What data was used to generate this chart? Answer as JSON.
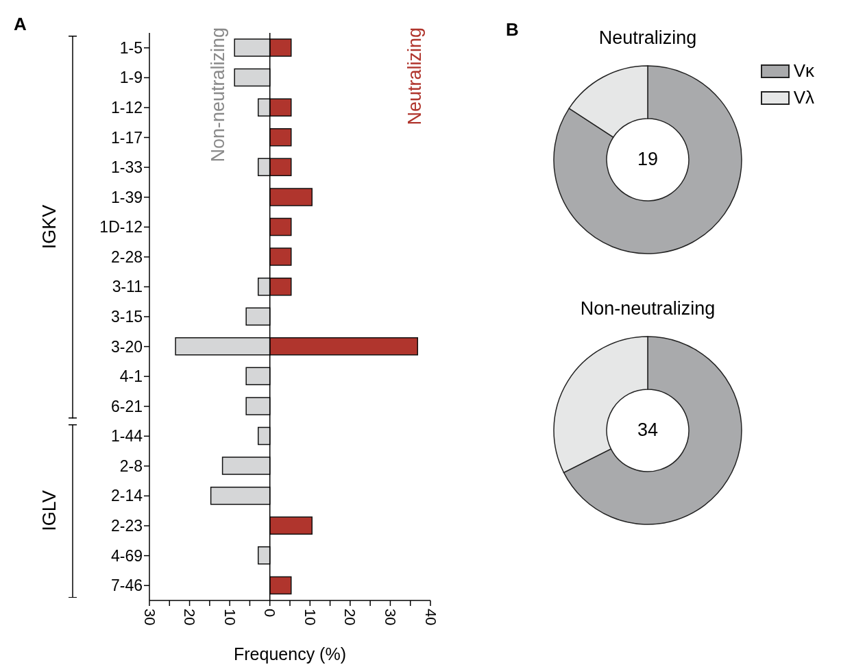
{
  "chart_data": [
    {
      "type": "bar",
      "orientation": "horizontal",
      "stacked": true,
      "xlabel": "Frequency (%)",
      "categories": [
        "1-5",
        "1-9",
        "1-12",
        "1-17",
        "1-33",
        "1-39",
        "1D-12",
        "2-28",
        "3-11",
        "3-15",
        "3-20",
        "4-1",
        "6-21",
        "1-44",
        "2-8",
        "2-14",
        "2-23",
        "4-69",
        "7-46"
      ],
      "series": [
        {
          "name": "Non-neutralizing",
          "color": "#d5d6d7",
          "values": [
            -8.8,
            -8.8,
            -2.9,
            null,
            -2.9,
            null,
            null,
            null,
            -2.9,
            -5.9,
            -23.5,
            -5.9,
            -5.9,
            -2.9,
            -11.8,
            -14.7,
            null,
            -2.9,
            null
          ]
        },
        {
          "name": "Neutralizing",
          "color": "#b0352d",
          "values": [
            5.3,
            null,
            5.3,
            5.3,
            5.3,
            10.5,
            5.3,
            5.3,
            5.3,
            null,
            36.8,
            null,
            null,
            null,
            null,
            null,
            10.5,
            null,
            5.3
          ]
        }
      ],
      "xlim": [
        -30,
        40
      ],
      "xticks": [
        {
          "value": -30,
          "label": "30"
        },
        {
          "value": -25,
          "label": null
        },
        {
          "value": -20,
          "label": "20"
        },
        {
          "value": -15,
          "label": null
        },
        {
          "value": -10,
          "label": "10"
        },
        {
          "value": -5,
          "label": null
        },
        0,
        {
          "value": 5,
          "label": null
        },
        10,
        {
          "value": 15,
          "label": null
        },
        20,
        {
          "value": 25,
          "label": null
        },
        30,
        {
          "value": 35,
          "label": null
        },
        40
      ],
      "legend": false,
      "ref_lines": [
        {
          "axis": "x",
          "value": 0,
          "color": "#000000"
        }
      ],
      "annotations": [
        "A",
        "IGKV",
        "IGLV"
      ]
    },
    {
      "type": "donut",
      "title": "Neutralizing",
      "categories": [
        "Vκ",
        "Vλ"
      ],
      "values": [
        84.2,
        15.8
      ],
      "colors": [
        "#a9aaac",
        "#e6e7e7"
      ],
      "legend": "right",
      "annotations": [
        "B",
        "19"
      ]
    },
    {
      "type": "donut",
      "title": "Non-neutralizing",
      "categories": [
        null,
        null
      ],
      "values": [
        67.6,
        32.4
      ],
      "colors": [
        "#a9aaac",
        "#e6e7e7"
      ],
      "legend": false,
      "annotations": [
        "34"
      ]
    }
  ]
}
